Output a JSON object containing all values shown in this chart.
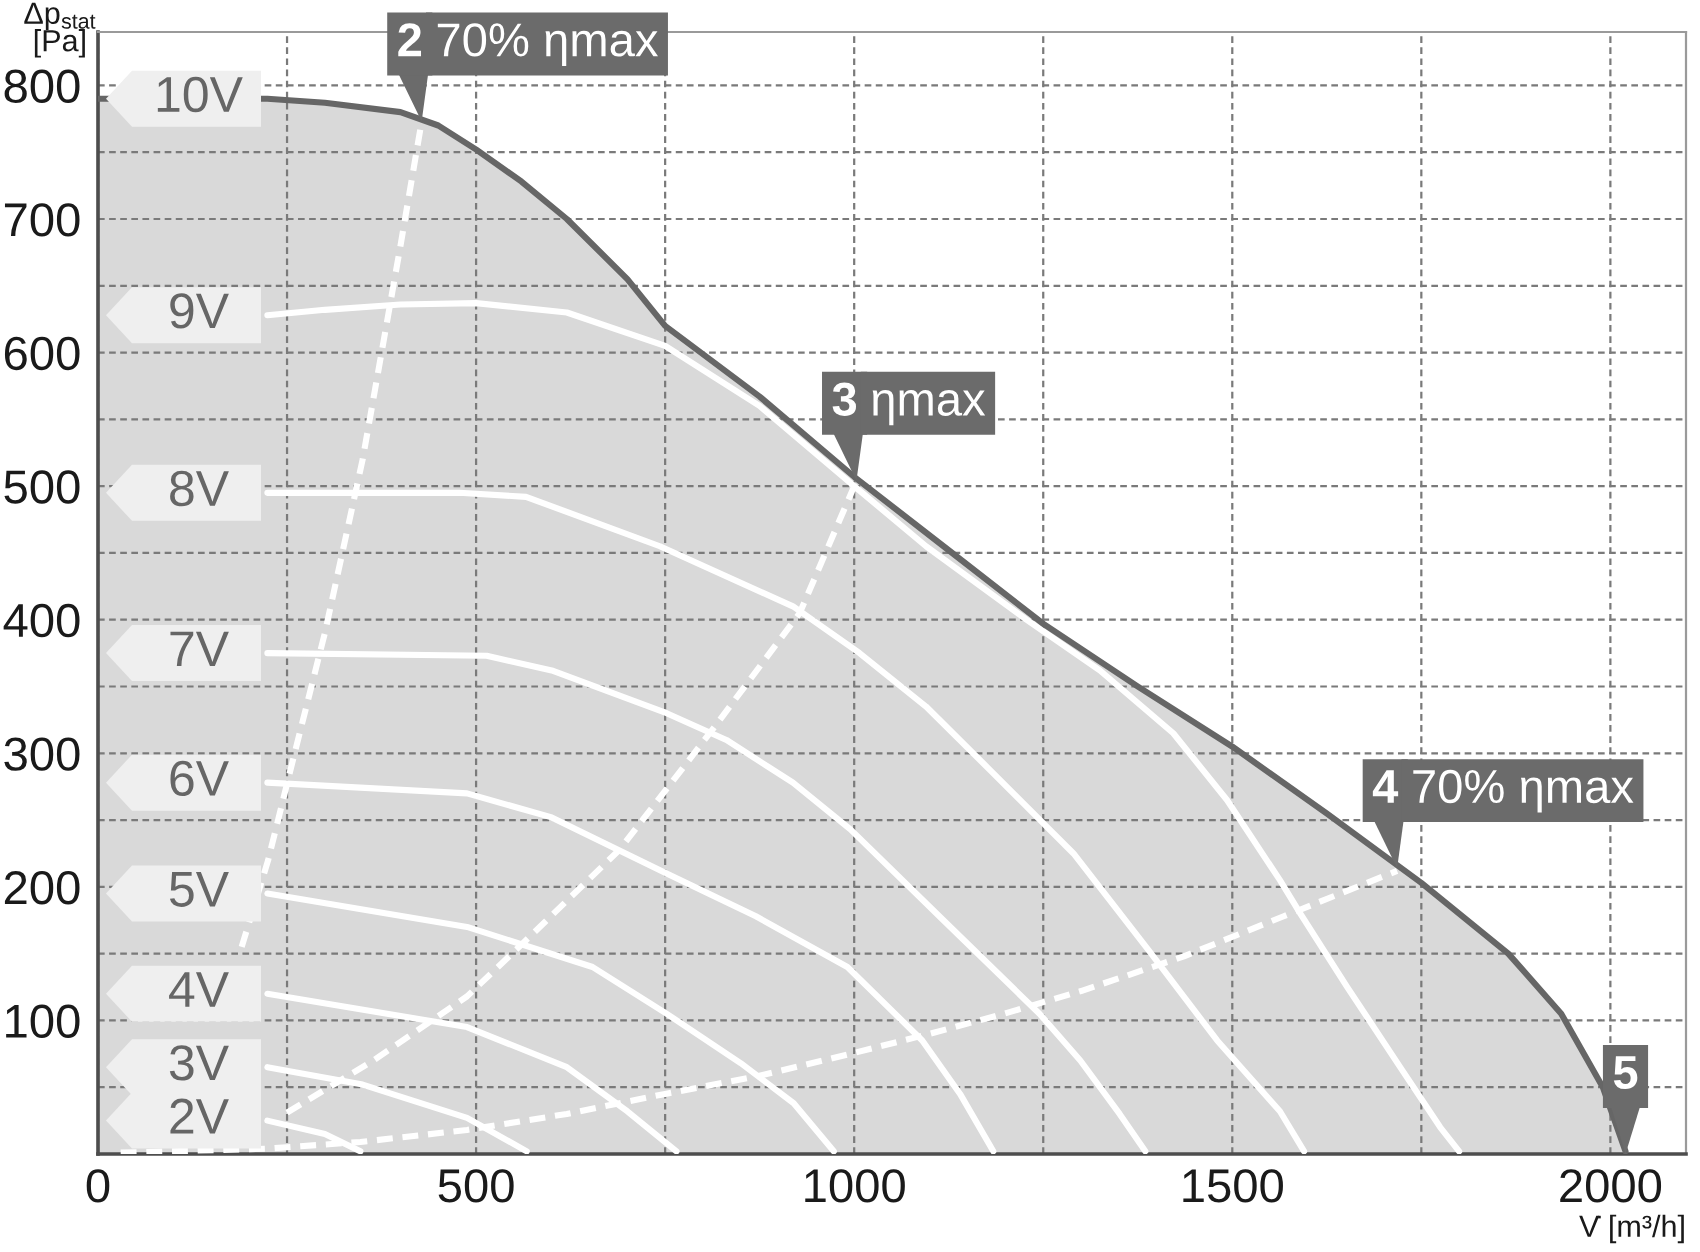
{
  "chart_data": {
    "type": "line",
    "xlabel": "V̇ [m³/h]",
    "ylabel": "Δp$_{stat}$\n[Pa]",
    "xlim": [
      0,
      2100
    ],
    "ylim": [
      0,
      840
    ],
    "xticks": [
      0,
      {
        "value": 250,
        "label": null
      },
      500,
      {
        "value": 750,
        "label": null
      },
      1000,
      {
        "value": 1250,
        "label": null
      },
      1500,
      {
        "value": 1750,
        "label": null
      },
      2000
    ],
    "yticks": [
      {
        "value": 50,
        "label": null
      },
      100,
      {
        "value": 150,
        "label": null
      },
      200,
      {
        "value": 250,
        "label": null
      },
      300,
      {
        "value": 350,
        "label": null
      },
      400,
      {
        "value": 450,
        "label": null
      },
      500,
      {
        "value": 550,
        "label": null
      },
      600,
      {
        "value": 650,
        "label": null
      },
      700,
      {
        "value": 750,
        "label": null
      },
      800
    ],
    "grid": true,
    "legend": "left",
    "series": [
      {
        "name": "9V",
        "color": "#ffffff",
        "x": [
          224,
          300,
          400,
          500,
          620,
          750,
          875,
          1000,
          1095,
          1228,
          1325,
          1422,
          1493,
          1563,
          1590,
          1652,
          1722,
          1775,
          1800
        ],
        "values": [
          628,
          632,
          636,
          637,
          630,
          605,
          560,
          500,
          455,
          400,
          362,
          315,
          265,
          205,
          180,
          125,
          65,
          20,
          2
        ]
      },
      {
        "name": "8V",
        "color": "#ffffff",
        "x": [
          224,
          478,
          566,
          743,
          919,
          1007,
          1095,
          1184,
          1290,
          1390,
          1480,
          1563,
          1595
        ],
        "values": [
          495,
          495,
          492,
          455,
          410,
          375,
          335,
          285,
          225,
          152,
          85,
          32,
          2
        ]
      },
      {
        "name": "7V",
        "color": "#ffffff",
        "x": [
          224,
          514,
          600,
          752,
          831,
          919,
          995,
          1118,
          1245,
          1299,
          1351,
          1385
        ],
        "values": [
          375,
          373,
          362,
          330,
          310,
          278,
          243,
          175,
          105,
          70,
          30,
          2
        ]
      },
      {
        "name": "6V",
        "color": "#ffffff",
        "x": [
          224,
          488,
          600,
          752,
          870,
          991,
          1090,
          1140,
          1184
        ],
        "values": [
          278,
          270,
          252,
          210,
          178,
          140,
          85,
          45,
          2
        ]
      },
      {
        "name": "5V",
        "color": "#ffffff",
        "x": [
          224,
          488,
          654,
          752,
          850,
          920,
          973
        ],
        "values": [
          195,
          170,
          140,
          105,
          68,
          38,
          2
        ]
      },
      {
        "name": "4V",
        "color": "#ffffff",
        "x": [
          224,
          488,
          620,
          700,
          765
        ],
        "values": [
          120,
          95,
          65,
          32,
          2
        ]
      },
      {
        "name": "3V",
        "color": "#ffffff",
        "x": [
          224,
          350,
          488,
          567
        ],
        "values": [
          65,
          52,
          27,
          2
        ]
      },
      {
        "name": "2V",
        "color": "#ffffff",
        "x": [
          224,
          300,
          347
        ],
        "values": [
          25,
          15,
          2
        ]
      },
      {
        "color": "#ffffff",
        "line_style": "dashed",
        "x": [
          190,
          225,
          260,
          300,
          350,
          400,
          428
        ],
        "values": [
          155,
          220,
          300,
          390,
          520,
          680,
          773
        ]
      },
      {
        "color": "#ffffff",
        "line_style": "dashed",
        "x": [
          250,
          364,
          488,
          566,
          690,
          813,
          928,
          1003
        ],
        "values": [
          31,
          70,
          118,
          160,
          228,
          318,
          405,
          504
        ]
      },
      {
        "color": "#ffffff",
        "line_style": "dashed",
        "x": [
          30,
          224,
          347,
          488,
          620,
          750,
          870,
          995,
          1100,
          1198,
          1300,
          1436,
          1568,
          1718
        ],
        "values": [
          1,
          4,
          9,
          18,
          30,
          45,
          58,
          75,
          90,
          105,
          122,
          148,
          178,
          212
        ]
      },
      {
        "name": "10V",
        "type": "area",
        "color": "#666666",
        "x": [
          0,
          224,
          300,
          400,
          450,
          500,
          560,
          620,
          700,
          750,
          875,
          1000,
          1125,
          1250,
          1375,
          1500,
          1625,
          1750,
          1865,
          1935,
          1990,
          2020
        ],
        "values": [
          790,
          790,
          787,
          780,
          770,
          752,
          728,
          700,
          655,
          620,
          567,
          507,
          452,
          397,
          350,
          305,
          255,
          203,
          150,
          105,
          50,
          2
        ]
      }
    ],
    "annotations": [
      {
        "text": "2 70% ηmax",
        "x": 428,
        "y": 773
      },
      {
        "text": "3 ηmax",
        "x": 1003,
        "y": 504
      },
      {
        "text": "4 70% ηmax",
        "x": 1718,
        "y": 214
      },
      {
        "text": "5",
        "x": 2020,
        "y": 0
      }
    ]
  }
}
